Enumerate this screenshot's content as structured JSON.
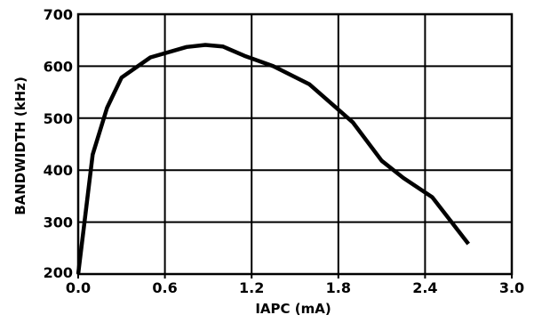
{
  "chart_data": {
    "type": "line",
    "title": "",
    "xlabel": "IAPC (mA)",
    "ylabel": "BANDWIDTH (kHz)",
    "xlim": [
      0,
      3.0
    ],
    "ylim": [
      200,
      700
    ],
    "x_ticks": [
      0.0,
      0.6,
      1.2,
      1.8,
      2.4,
      3.0
    ],
    "x_tick_labels": [
      "0.0",
      "0.6",
      "1.2",
      "1.8",
      "2.4",
      "3.0"
    ],
    "y_ticks": [
      200,
      300,
      400,
      500,
      600,
      700
    ],
    "y_tick_labels": [
      "200",
      "300",
      "400",
      "500",
      "600",
      "700"
    ],
    "grid": true,
    "line_color": "#000000",
    "series": [
      {
        "x": [
          0.0,
          0.1,
          0.2,
          0.3,
          0.5,
          0.75,
          0.88,
          1.0,
          1.15,
          1.35,
          1.6,
          1.9,
          2.1,
          2.25,
          2.45,
          2.7
        ],
        "values": [
          200,
          430,
          520,
          578,
          617,
          637,
          641,
          638,
          620,
          600,
          565,
          492,
          418,
          385,
          348,
          258
        ]
      }
    ]
  }
}
